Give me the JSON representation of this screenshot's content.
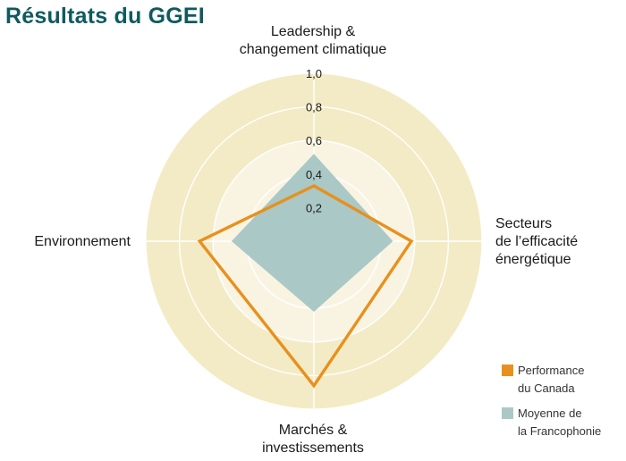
{
  "title": "Résultats du GGEI",
  "chart_data": {
    "type": "radar",
    "axes": [
      "Leadership & changement climatique",
      "Secteurs de l’efficacité énergétique",
      "Marchés & investissements",
      "Environnement"
    ],
    "axis_label_lines": [
      [
        "Leadership &",
        "changement climatique"
      ],
      [
        "Secteurs",
        "de l’efficacité",
        "énergétique"
      ],
      [
        "Marchés &",
        "investissements"
      ],
      [
        "Environnement"
      ]
    ],
    "rlim": [
      0,
      1.0
    ],
    "ticks": [
      "0,2",
      "0,4",
      "0,6",
      "0,8",
      "1,0"
    ],
    "tick_values": [
      0.2,
      0.4,
      0.6,
      0.8,
      1.0
    ],
    "series": [
      {
        "name": "Performance du Canada",
        "values": [
          0.33,
          0.58,
          0.86,
          0.68
        ],
        "color": "#e8901e",
        "style": "outline"
      },
      {
        "name": "Moyenne de la Francophonie",
        "values": [
          0.52,
          0.47,
          0.42,
          0.49
        ],
        "color": "#aac8c6",
        "style": "filled"
      }
    ],
    "legend": {
      "position": "bottom-right",
      "entries": [
        {
          "lines": [
            "Performance",
            "du Canada"
          ],
          "color": "#e8901e"
        },
        {
          "lines": [
            "Moyenne de",
            "la Francophonie"
          ],
          "color": "#aac8c6"
        }
      ]
    },
    "colors": {
      "background_outer": "#f3ebc5",
      "background_inner": "#f9f4e2",
      "gridline": "#ffffff"
    }
  }
}
